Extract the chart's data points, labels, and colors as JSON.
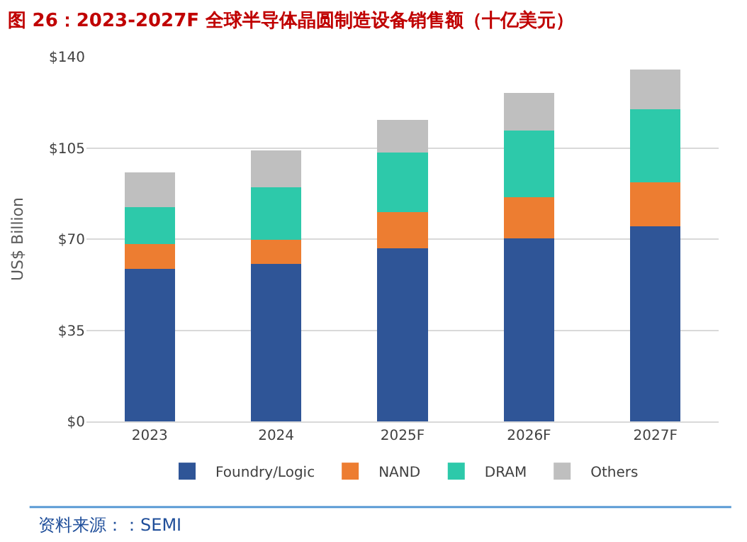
{
  "chart_data": {
    "type": "bar",
    "stacked": true,
    "title": "图 26：2023-2027F 全球半导体晶圆制造设备销售额（十亿美元）",
    "ylabel": "US$ Billion",
    "categories": [
      "2023",
      "2024",
      "2025F",
      "2026F",
      "2027F"
    ],
    "series": [
      {
        "name": "Foundry/Logic",
        "color": "#2f5597",
        "values": [
          58.6,
          60.4,
          66.5,
          70.2,
          74.8
        ]
      },
      {
        "name": "NAND",
        "color": "#ed7d31",
        "values": [
          9.4,
          9.4,
          13.8,
          16.0,
          17.1
        ]
      },
      {
        "name": "DRAM",
        "color": "#2dc9aa",
        "values": [
          14.3,
          20.1,
          23.0,
          25.6,
          28.0
        ]
      },
      {
        "name": "Others",
        "color": "#bfbfbf",
        "values": [
          13.3,
          14.2,
          12.4,
          14.2,
          15.1
        ]
      }
    ],
    "ylim": [
      0,
      140
    ],
    "yticks": [
      {
        "value": 0,
        "label": "$0"
      },
      {
        "value": 35,
        "label": "$35"
      },
      {
        "value": 70,
        "label": "$70"
      },
      {
        "value": 105,
        "label": "$105"
      },
      {
        "value": 140,
        "label": "$140"
      }
    ],
    "grid": "y",
    "legend": "bottom",
    "annotations": [
      "资料来源：：SEMI"
    ]
  }
}
